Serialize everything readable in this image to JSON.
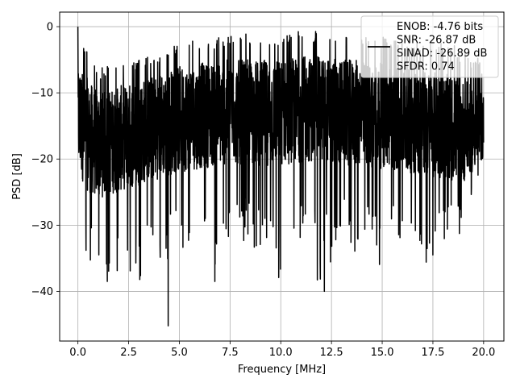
{
  "chart_data": {
    "type": "line",
    "title": "",
    "xlabel": "Frequency [MHz]",
    "ylabel": "PSD [dB]",
    "xlim": [
      -0.9,
      21.0
    ],
    "ylim": [
      -47.5,
      2.2
    ],
    "xticks": [
      0.0,
      2.5,
      5.0,
      7.5,
      10.0,
      12.5,
      15.0,
      17.5,
      20.0
    ],
    "xtick_labels": [
      "0.0",
      "2.5",
      "5.0",
      "7.5",
      "10.0",
      "12.5",
      "15.0",
      "17.5",
      "20.0"
    ],
    "yticks": [
      0,
      -10,
      -20,
      -30,
      -40
    ],
    "ytick_labels": [
      "0",
      "−10",
      "−20",
      "−30",
      "−40"
    ],
    "grid": true,
    "legend_position": "top-right",
    "series": [
      {
        "name": "ENOB: -4.76 bits\nSNR: -26.87 dB\nSINAD: -26.89 dB\nSFDR: 0.74",
        "color": "#000000",
        "x_range": [
          0.0,
          20.0
        ],
        "envelope": {
          "x": [
            0.0,
            0.5,
            1.0,
            2.0,
            3.0,
            4.0,
            5.0,
            6.0,
            7.0,
            8.0,
            9.0,
            10.0,
            11.0,
            12.0,
            13.0,
            14.0,
            15.0,
            16.0,
            17.0,
            18.0,
            19.0,
            20.0
          ],
          "upper": [
            0.0,
            -3.5,
            -6.0,
            -5.5,
            -5.0,
            -4.0,
            -2.5,
            -2.0,
            -1.5,
            -1.0,
            -1.0,
            -1.0,
            -0.5,
            -0.5,
            -1.0,
            -1.5,
            -1.5,
            -2.0,
            -2.5,
            -2.5,
            -3.0,
            -5.0
          ],
          "lower": [
            -33.0,
            -36.0,
            -36.5,
            -38.0,
            -38.0,
            -36.0,
            -35.0,
            -34.0,
            -38.5,
            -32.0,
            -34.0,
            -38.0,
            -32.0,
            -40.0,
            -33.0,
            -35.0,
            -37.5,
            -32.0,
            -37.0,
            -33.0,
            -31.0,
            -22.0
          ],
          "typical_high": [
            -5.0,
            -8.0,
            -10.0,
            -9.0,
            -8.0,
            -7.0,
            -6.0,
            -5.5,
            -5.0,
            -5.0,
            -5.0,
            -5.0,
            -4.5,
            -4.5,
            -5.0,
            -5.0,
            -5.5,
            -6.0,
            -6.5,
            -7.0,
            -8.0,
            -10.0
          ],
          "typical_low": [
            -22.0,
            -25.0,
            -26.0,
            -25.0,
            -24.0,
            -23.0,
            -22.0,
            -21.5,
            -21.0,
            -21.0,
            -21.0,
            -21.0,
            -20.5,
            -20.5,
            -21.0,
            -21.0,
            -21.5,
            -22.0,
            -22.5,
            -23.0,
            -23.5,
            -20.0
          ]
        },
        "notable_points": [
          {
            "x": 0.0,
            "y": 0.0
          },
          {
            "x": 4.45,
            "y": -45.2
          },
          {
            "x": 12.15,
            "y": -40.0
          },
          {
            "x": 1.45,
            "y": -38.5
          },
          {
            "x": 3.05,
            "y": -38.2
          },
          {
            "x": 6.75,
            "y": -38.5
          },
          {
            "x": 9.9,
            "y": -37.9
          }
        ]
      }
    ],
    "legend_lines": [
      "ENOB: -4.76 bits",
      "SNR: -26.87 dB",
      "SINAD: -26.89 dB",
      "SFDR: 0.74"
    ]
  }
}
